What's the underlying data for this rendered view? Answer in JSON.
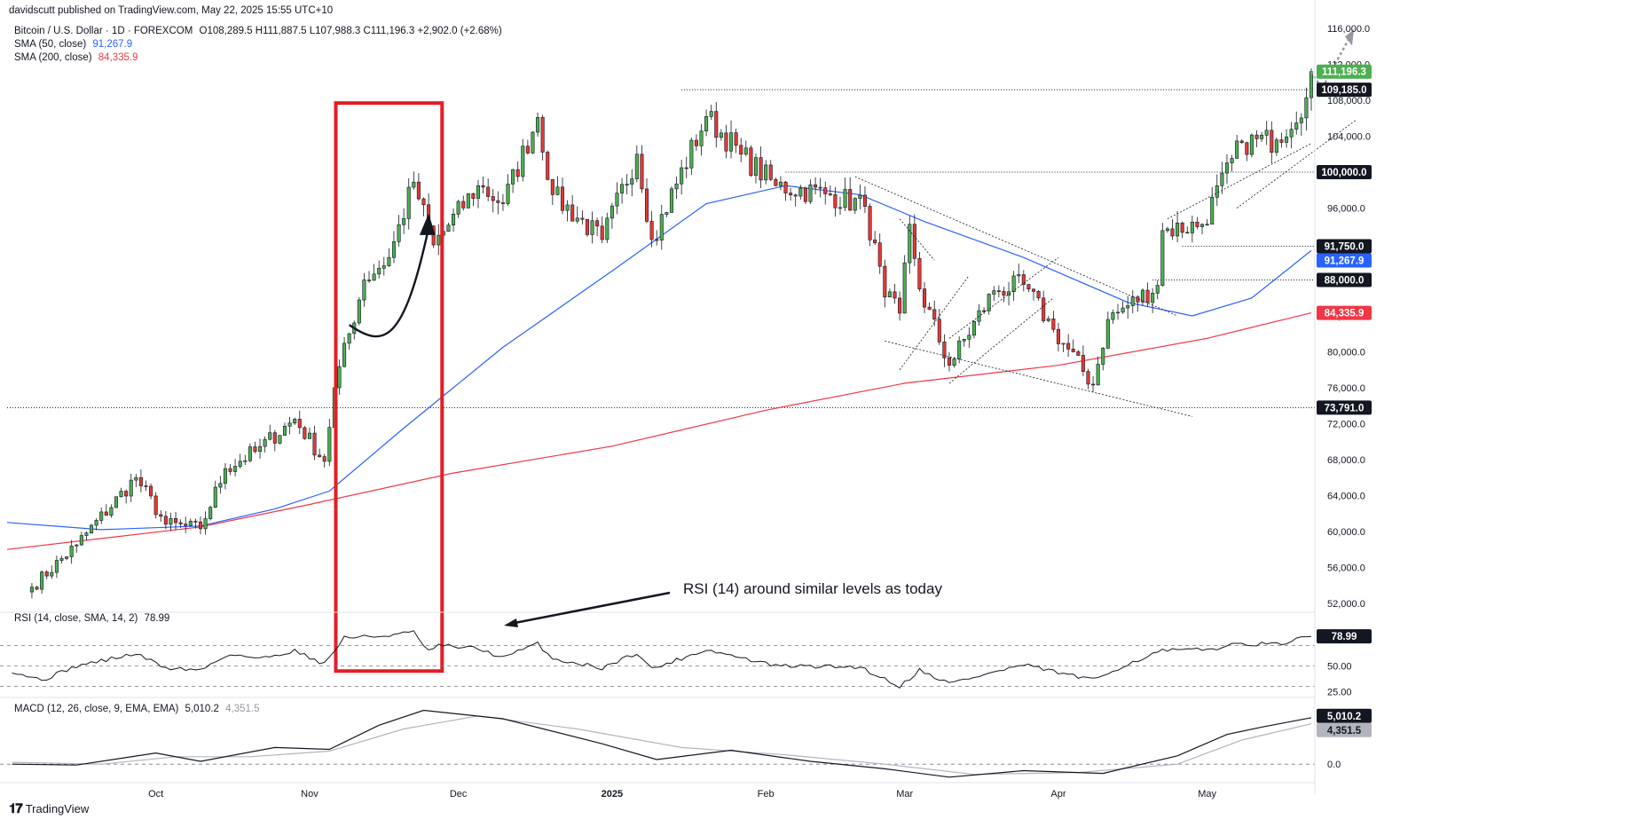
{
  "header": {
    "published": "davidscutt published on TradingView.com, May 22, 2025 15:55 UTC+10",
    "symbol": "Bitcoin / U.S. Dollar · 1D · FOREXCOM",
    "ohlc": "O108,289.5 H111,887.5 L107,988.3 C111,196.3 +2,902.0 (+2.68%)",
    "sma50_label": "SMA (50, close)",
    "sma50_value": "91,267.9",
    "sma200_label": "SMA (200, close)",
    "sma200_value": "84,335.9",
    "rsi_label": "RSI (14, close, SMA, 14, 2)",
    "rsi_value": "78.99",
    "macd_label": "MACD (12, 26, close, 9, EMA, EMA)",
    "macd_value": "5,010.2",
    "macd_signal_value": "4,351.5"
  },
  "brand": "TradingView",
  "colors": {
    "up": "#26a69a",
    "up_fill": "#4caf50",
    "down": "#ef5350",
    "down_fill": "#e53935",
    "sma50": "#2962ff",
    "sma200": "#f23645",
    "highlight_box": "#e31e24",
    "rsi_line": "#131722",
    "macd_line": "#131722",
    "signal_line": "#b2b5be"
  },
  "annotation": {
    "text": "RSI (14) around similar levels as today"
  },
  "chart_data": [
    {
      "type": "candlestick",
      "name": "Bitcoin / U.S. Dollar",
      "ylim": [
        51000,
        117000
      ],
      "y_ticks": [
        "116,000.0",
        "112,000.0",
        "108,000.0",
        "104,000.0",
        "100,000.0",
        "96,000.0",
        "92,000.0",
        "88,000.0",
        "84,000.0",
        "80,000.0",
        "76,000.0",
        "72,000.0",
        "68,000.0",
        "64,000.0",
        "60,000.0",
        "56,000.0",
        "52,000.0"
      ],
      "x_ticks": [
        {
          "label": "Oct",
          "date": "2024-10-01"
        },
        {
          "label": "Nov",
          "date": "2024-11-01"
        },
        {
          "label": "Dec",
          "date": "2024-12-01"
        },
        {
          "label": "2025",
          "date": "2025-01-01"
        },
        {
          "label": "Feb",
          "date": "2025-02-01"
        },
        {
          "label": "Mar",
          "date": "2025-03-01"
        },
        {
          "label": "Apr",
          "date": "2025-04-01"
        },
        {
          "label": "May",
          "date": "2025-05-01"
        }
      ],
      "price_badges": [
        {
          "label": "111,196.3",
          "value": 111196.3,
          "kind": "last"
        },
        {
          "label": "109,185.0",
          "value": 109185,
          "kind": "level"
        },
        {
          "label": "100,000.0",
          "value": 100000,
          "kind": "level"
        },
        {
          "label": "91,750.0",
          "value": 91750,
          "kind": "level"
        },
        {
          "label": "91,267.9",
          "value": 91267.9,
          "kind": "sma50"
        },
        {
          "label": "88,000.0",
          "value": 88000,
          "kind": "level"
        },
        {
          "label": "84,335.9",
          "value": 84335.9,
          "kind": "sma200"
        },
        {
          "label": "73,791.0",
          "value": 73791,
          "kind": "level"
        }
      ],
      "anchors": [
        {
          "date": "2024-09-06",
          "close": 53800
        },
        {
          "date": "2024-09-15",
          "close": 58500
        },
        {
          "date": "2024-09-27",
          "close": 66000
        },
        {
          "date": "2024-10-03",
          "close": 60800
        },
        {
          "date": "2024-10-10",
          "close": 60300
        },
        {
          "date": "2024-10-15",
          "close": 67000
        },
        {
          "date": "2024-10-21",
          "close": 68900
        },
        {
          "date": "2024-10-29",
          "close": 72500
        },
        {
          "date": "2024-11-04",
          "close": 67800
        },
        {
          "date": "2024-11-06",
          "close": 76000
        },
        {
          "date": "2024-11-12",
          "close": 88000
        },
        {
          "date": "2024-11-17",
          "close": 90500
        },
        {
          "date": "2024-11-22",
          "close": 98900
        },
        {
          "date": "2024-11-26",
          "close": 91900
        },
        {
          "date": "2024-12-05",
          "close": 98500
        },
        {
          "date": "2024-12-10",
          "close": 96500
        },
        {
          "date": "2024-12-17",
          "close": 106100
        },
        {
          "date": "2024-12-20",
          "close": 97500
        },
        {
          "date": "2024-12-30",
          "close": 92500
        },
        {
          "date": "2025-01-06",
          "close": 102000
        },
        {
          "date": "2025-01-09",
          "close": 92500
        },
        {
          "date": "2025-01-20",
          "close": 106200
        },
        {
          "date": "2025-01-27",
          "close": 102000
        },
        {
          "date": "2025-02-03",
          "close": 98500
        },
        {
          "date": "2025-02-14",
          "close": 97500
        },
        {
          "date": "2025-02-21",
          "close": 96200
        },
        {
          "date": "2025-02-25",
          "close": 86100
        },
        {
          "date": "2025-02-28",
          "close": 84300
        },
        {
          "date": "2025-03-02",
          "close": 94200
        },
        {
          "date": "2025-03-04",
          "close": 87000
        },
        {
          "date": "2025-03-10",
          "close": 78500
        },
        {
          "date": "2025-03-19",
          "close": 86800
        },
        {
          "date": "2025-03-25",
          "close": 87500
        },
        {
          "date": "2025-03-31",
          "close": 82500
        },
        {
          "date": "2025-04-08",
          "close": 76300
        },
        {
          "date": "2025-04-11",
          "close": 83600
        },
        {
          "date": "2025-04-21",
          "close": 87400
        },
        {
          "date": "2025-04-22",
          "close": 93500
        },
        {
          "date": "2025-04-30",
          "close": 94200
        },
        {
          "date": "2025-05-08",
          "close": 103300
        },
        {
          "date": "2025-05-15",
          "close": 103600
        },
        {
          "date": "2025-05-21",
          "close": 108300
        },
        {
          "date": "2025-05-22",
          "close": 111196.3
        }
      ],
      "sma50_points": [
        {
          "date": "2024-09-01",
          "value": 61000
        },
        {
          "date": "2024-09-20",
          "value": 60200
        },
        {
          "date": "2024-10-10",
          "value": 60600
        },
        {
          "date": "2024-10-25",
          "value": 62500
        },
        {
          "date": "2024-11-05",
          "value": 64500
        },
        {
          "date": "2024-11-20",
          "value": 71500
        },
        {
          "date": "2024-12-10",
          "value": 80500
        },
        {
          "date": "2025-01-01",
          "value": 89000
        },
        {
          "date": "2025-01-20",
          "value": 96500
        },
        {
          "date": "2025-02-05",
          "value": 98500
        },
        {
          "date": "2025-02-20",
          "value": 97500
        },
        {
          "date": "2025-03-05",
          "value": 94500
        },
        {
          "date": "2025-03-25",
          "value": 90500
        },
        {
          "date": "2025-04-15",
          "value": 85500
        },
        {
          "date": "2025-04-28",
          "value": 84000
        },
        {
          "date": "2025-05-10",
          "value": 86000
        },
        {
          "date": "2025-05-22",
          "value": 91267.9
        }
      ],
      "sma200_points": [
        {
          "date": "2024-09-01",
          "value": 58000
        },
        {
          "date": "2024-10-10",
          "value": 60500
        },
        {
          "date": "2024-11-01",
          "value": 63000
        },
        {
          "date": "2024-11-30",
          "value": 66500
        },
        {
          "date": "2025-01-01",
          "value": 69500
        },
        {
          "date": "2025-02-01",
          "value": 73500
        },
        {
          "date": "2025-03-01",
          "value": 76500
        },
        {
          "date": "2025-04-01",
          "value": 78500
        },
        {
          "date": "2025-05-01",
          "value": 81500
        },
        {
          "date": "2025-05-22",
          "value": 84335.9
        }
      ]
    },
    {
      "type": "line",
      "name": "RSI (14, close, SMA, 14, 2)",
      "ylim": [
        20,
        100
      ],
      "y_ticks": [
        "78.99",
        "50.00",
        "25.00"
      ],
      "levels": [
        70,
        50,
        30
      ],
      "points": [
        {
          "date": "2024-09-02",
          "value": 45
        },
        {
          "date": "2024-09-08",
          "value": 36
        },
        {
          "date": "2024-09-15",
          "value": 50
        },
        {
          "date": "2024-09-27",
          "value": 62
        },
        {
          "date": "2024-10-03",
          "value": 48
        },
        {
          "date": "2024-10-10",
          "value": 46
        },
        {
          "date": "2024-10-16",
          "value": 62
        },
        {
          "date": "2024-10-22",
          "value": 57
        },
        {
          "date": "2024-10-29",
          "value": 65
        },
        {
          "date": "2024-11-04",
          "value": 52
        },
        {
          "date": "2024-11-08",
          "value": 78
        },
        {
          "date": "2024-11-15",
          "value": 79
        },
        {
          "date": "2024-11-22",
          "value": 83
        },
        {
          "date": "2024-11-25",
          "value": 64
        },
        {
          "date": "2024-11-27",
          "value": 70
        },
        {
          "date": "2024-12-05",
          "value": 67
        },
        {
          "date": "2024-12-10",
          "value": 58
        },
        {
          "date": "2024-12-17",
          "value": 72
        },
        {
          "date": "2024-12-20",
          "value": 57
        },
        {
          "date": "2024-12-30",
          "value": 48
        },
        {
          "date": "2025-01-06",
          "value": 63
        },
        {
          "date": "2025-01-09",
          "value": 47
        },
        {
          "date": "2025-01-20",
          "value": 66
        },
        {
          "date": "2025-01-27",
          "value": 58
        },
        {
          "date": "2025-02-03",
          "value": 50
        },
        {
          "date": "2025-02-20",
          "value": 49
        },
        {
          "date": "2025-02-28",
          "value": 30
        },
        {
          "date": "2025-03-04",
          "value": 46
        },
        {
          "date": "2025-03-10",
          "value": 33
        },
        {
          "date": "2025-03-25",
          "value": 51
        },
        {
          "date": "2025-04-08",
          "value": 36
        },
        {
          "date": "2025-04-14",
          "value": 50
        },
        {
          "date": "2025-04-22",
          "value": 65
        },
        {
          "date": "2025-05-01",
          "value": 66
        },
        {
          "date": "2025-05-08",
          "value": 72
        },
        {
          "date": "2025-05-15",
          "value": 71
        },
        {
          "date": "2025-05-22",
          "value": 78.99
        }
      ]
    },
    {
      "type": "line",
      "name": "MACD (12, 26, close, 9, EMA, EMA)",
      "ylim": [
        -1800,
        7000
      ],
      "y_ticks": [
        "5,010.2",
        "4,351.5",
        "0.0"
      ],
      "series": [
        {
          "name": "MACD",
          "points": [
            {
              "date": "2024-09-02",
              "value": 0
            },
            {
              "date": "2024-09-15",
              "value": -100
            },
            {
              "date": "2024-10-01",
              "value": 1200
            },
            {
              "date": "2024-10-10",
              "value": 300
            },
            {
              "date": "2024-10-25",
              "value": 1800
            },
            {
              "date": "2024-11-05",
              "value": 1600
            },
            {
              "date": "2024-11-15",
              "value": 4200
            },
            {
              "date": "2024-11-24",
              "value": 5800
            },
            {
              "date": "2024-12-10",
              "value": 4900
            },
            {
              "date": "2024-12-30",
              "value": 2200
            },
            {
              "date": "2025-01-10",
              "value": 500
            },
            {
              "date": "2025-01-25",
              "value": 1500
            },
            {
              "date": "2025-02-10",
              "value": 300
            },
            {
              "date": "2025-02-25",
              "value": -500
            },
            {
              "date": "2025-03-10",
              "value": -1400
            },
            {
              "date": "2025-03-25",
              "value": -700
            },
            {
              "date": "2025-04-10",
              "value": -1000
            },
            {
              "date": "2025-04-25",
              "value": 900
            },
            {
              "date": "2025-05-05",
              "value": 3200
            },
            {
              "date": "2025-05-12",
              "value": 4000
            },
            {
              "date": "2025-05-22",
              "value": 5010.2
            }
          ]
        },
        {
          "name": "Signal",
          "points": [
            {
              "date": "2024-09-02",
              "value": 200
            },
            {
              "date": "2024-09-20",
              "value": 0
            },
            {
              "date": "2024-10-05",
              "value": 800
            },
            {
              "date": "2024-10-20",
              "value": 800
            },
            {
              "date": "2024-11-05",
              "value": 1400
            },
            {
              "date": "2024-11-20",
              "value": 3800
            },
            {
              "date": "2024-12-05",
              "value": 5200
            },
            {
              "date": "2024-12-25",
              "value": 3800
            },
            {
              "date": "2025-01-15",
              "value": 1800
            },
            {
              "date": "2025-02-05",
              "value": 1000
            },
            {
              "date": "2025-02-25",
              "value": 0
            },
            {
              "date": "2025-03-15",
              "value": -1100
            },
            {
              "date": "2025-04-05",
              "value": -900
            },
            {
              "date": "2025-04-25",
              "value": 0
            },
            {
              "date": "2025-05-08",
              "value": 2600
            },
            {
              "date": "2025-05-22",
              "value": 4351.5
            }
          ]
        }
      ]
    }
  ]
}
